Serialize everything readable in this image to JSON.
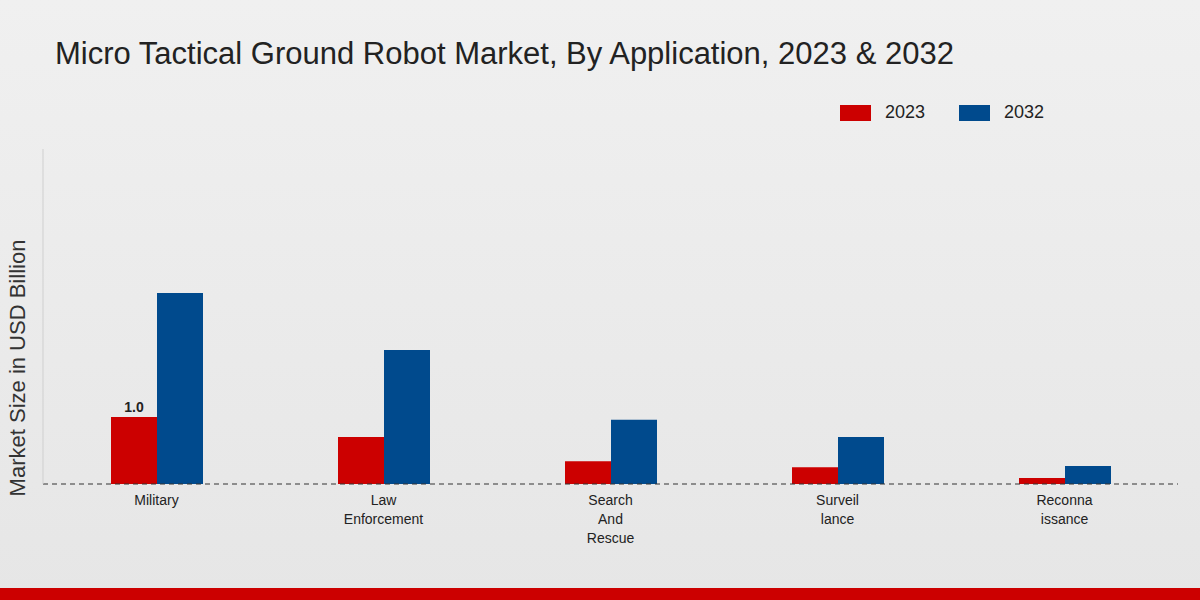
{
  "chart_data": {
    "type": "bar",
    "title": "Micro Tactical Ground Robot Market, By Application, 2023 & 2032",
    "y_label": "Market Size in USD Billion",
    "categories": [
      "Military",
      "Law Enforcement",
      "Search And Rescue",
      "Surveil lance",
      "Reconna issance"
    ],
    "series": [
      {
        "name": "2023",
        "color": "#cc0000",
        "values": [
          1.0,
          0.7,
          0.34,
          0.25,
          0.09
        ],
        "value_labels": [
          "1.0",
          null,
          null,
          null,
          null
        ]
      },
      {
        "name": "2032",
        "color": "#004a8d",
        "values": [
          2.85,
          2.0,
          0.96,
          0.7,
          0.27
        ]
      }
    ],
    "ylim": [
      0,
      5
    ],
    "tick_labels": "x",
    "legend": "top right",
    "grid": false
  }
}
